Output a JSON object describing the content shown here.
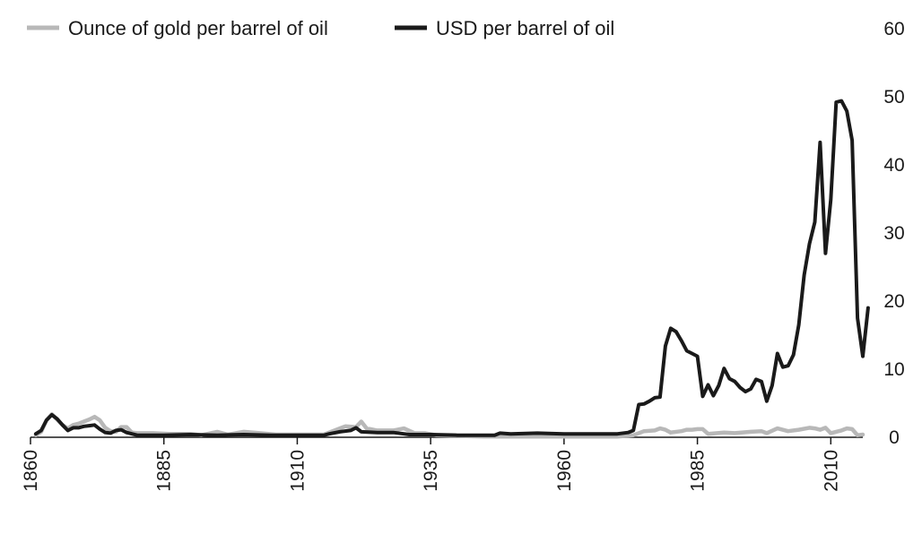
{
  "chart_data": {
    "type": "line",
    "title": "",
    "xlabel": "",
    "ylabel": "",
    "xlim": [
      1860,
      2016
    ],
    "ylim": [
      0,
      60
    ],
    "x_ticks": [
      1860,
      1885,
      1910,
      1935,
      1960,
      1985,
      2010
    ],
    "y_ticks": [
      0,
      10,
      20,
      30,
      40,
      50,
      60
    ],
    "y_axis_position": "right",
    "x_tick_rotation": "vertical",
    "grid": false,
    "legend_position": "top-left",
    "series": [
      {
        "name": "Ounce of gold per barrel of oil",
        "color": "#b8b8b8",
        "points": [
          [
            1861,
            0.3
          ],
          [
            1862,
            0.8
          ],
          [
            1863,
            2.5
          ],
          [
            1864,
            3.4
          ],
          [
            1865,
            2.6
          ],
          [
            1866,
            1.8
          ],
          [
            1867,
            1.3
          ],
          [
            1868,
            1.8
          ],
          [
            1869,
            2.0
          ],
          [
            1870,
            2.3
          ],
          [
            1871,
            2.6
          ],
          [
            1872,
            3.0
          ],
          [
            1873,
            2.5
          ],
          [
            1874,
            1.4
          ],
          [
            1875,
            0.9
          ],
          [
            1876,
            0.8
          ],
          [
            1877,
            1.5
          ],
          [
            1878,
            1.5
          ],
          [
            1879,
            0.7
          ],
          [
            1880,
            0.6
          ],
          [
            1883,
            0.6
          ],
          [
            1886,
            0.5
          ],
          [
            1890,
            0.5
          ],
          [
            1892,
            0.3
          ],
          [
            1895,
            0.8
          ],
          [
            1897,
            0.4
          ],
          [
            1900,
            0.8
          ],
          [
            1903,
            0.6
          ],
          [
            1906,
            0.4
          ],
          [
            1910,
            0.4
          ],
          [
            1915,
            0.4
          ],
          [
            1917,
            1.0
          ],
          [
            1919,
            1.6
          ],
          [
            1921,
            1.5
          ],
          [
            1922,
            2.3
          ],
          [
            1923,
            1.3
          ],
          [
            1925,
            1.0
          ],
          [
            1928,
            1.0
          ],
          [
            1930,
            1.3
          ],
          [
            1932,
            0.6
          ],
          [
            1934,
            0.6
          ],
          [
            1936,
            0.3
          ],
          [
            1940,
            0.2
          ],
          [
            1945,
            0.1
          ],
          [
            1950,
            0.1
          ],
          [
            1955,
            0.1
          ],
          [
            1960,
            0.1
          ],
          [
            1965,
            0.1
          ],
          [
            1970,
            0.1
          ],
          [
            1973,
            0.3
          ],
          [
            1975,
            0.9
          ],
          [
            1977,
            1.0
          ],
          [
            1978,
            1.3
          ],
          [
            1979,
            1.1
          ],
          [
            1980,
            0.7
          ],
          [
            1982,
            0.9
          ],
          [
            1983,
            1.1
          ],
          [
            1984,
            1.1
          ],
          [
            1985,
            1.2
          ],
          [
            1986,
            1.2
          ],
          [
            1987,
            0.5
          ],
          [
            1990,
            0.7
          ],
          [
            1992,
            0.6
          ],
          [
            1995,
            0.8
          ],
          [
            1997,
            0.9
          ],
          [
            1998,
            0.6
          ],
          [
            2000,
            1.3
          ],
          [
            2002,
            0.9
          ],
          [
            2004,
            1.1
          ],
          [
            2006,
            1.4
          ],
          [
            2007,
            1.3
          ],
          [
            2008,
            1.1
          ],
          [
            2009,
            1.4
          ],
          [
            2010,
            0.6
          ],
          [
            2012,
            1.0
          ],
          [
            2013,
            1.3
          ],
          [
            2014,
            1.2
          ],
          [
            2015,
            0.3
          ],
          [
            2016,
            0.4
          ]
        ]
      },
      {
        "name": "USD per barrel of oil",
        "color": "#1a1a1a",
        "points": [
          [
            1861,
            0.5
          ],
          [
            1862,
            1.0
          ],
          [
            1863,
            2.5
          ],
          [
            1864,
            3.3
          ],
          [
            1865,
            2.7
          ],
          [
            1866,
            1.8
          ],
          [
            1867,
            1.0
          ],
          [
            1868,
            1.4
          ],
          [
            1869,
            1.4
          ],
          [
            1870,
            1.6
          ],
          [
            1871,
            1.7
          ],
          [
            1872,
            1.8
          ],
          [
            1873,
            1.2
          ],
          [
            1874,
            0.7
          ],
          [
            1875,
            0.6
          ],
          [
            1876,
            1.0
          ],
          [
            1877,
            1.1
          ],
          [
            1878,
            0.7
          ],
          [
            1879,
            0.5
          ],
          [
            1880,
            0.3
          ],
          [
            1885,
            0.3
          ],
          [
            1890,
            0.4
          ],
          [
            1895,
            0.3
          ],
          [
            1900,
            0.4
          ],
          [
            1905,
            0.3
          ],
          [
            1910,
            0.3
          ],
          [
            1915,
            0.3
          ],
          [
            1916,
            0.5
          ],
          [
            1918,
            0.8
          ],
          [
            1920,
            1.0
          ],
          [
            1921,
            1.4
          ],
          [
            1922,
            0.8
          ],
          [
            1925,
            0.7
          ],
          [
            1928,
            0.7
          ],
          [
            1930,
            0.5
          ],
          [
            1931,
            0.4
          ],
          [
            1935,
            0.4
          ],
          [
            1940,
            0.3
          ],
          [
            1945,
            0.3
          ],
          [
            1947,
            0.3
          ],
          [
            1948,
            0.6
          ],
          [
            1950,
            0.5
          ],
          [
            1955,
            0.6
          ],
          [
            1960,
            0.5
          ],
          [
            1965,
            0.5
          ],
          [
            1970,
            0.5
          ],
          [
            1972,
            0.7
          ],
          [
            1973,
            1.0
          ],
          [
            1974,
            4.8
          ],
          [
            1975,
            4.9
          ],
          [
            1976,
            5.3
          ],
          [
            1977,
            5.8
          ],
          [
            1978,
            5.9
          ],
          [
            1979,
            13.4
          ],
          [
            1980,
            16.0
          ],
          [
            1981,
            15.5
          ],
          [
            1982,
            14.2
          ],
          [
            1983,
            12.7
          ],
          [
            1984,
            12.3
          ],
          [
            1985,
            11.9
          ],
          [
            1986,
            6.0
          ],
          [
            1987,
            7.7
          ],
          [
            1988,
            6.1
          ],
          [
            1989,
            7.6
          ],
          [
            1990,
            10.1
          ],
          [
            1991,
            8.6
          ],
          [
            1992,
            8.2
          ],
          [
            1993,
            7.3
          ],
          [
            1994,
            6.7
          ],
          [
            1995,
            7.1
          ],
          [
            1996,
            8.5
          ],
          [
            1997,
            8.2
          ],
          [
            1998,
            5.3
          ],
          [
            1999,
            7.6
          ],
          [
            2000,
            12.3
          ],
          [
            2001,
            10.3
          ],
          [
            2002,
            10.5
          ],
          [
            2003,
            12.1
          ],
          [
            2004,
            16.5
          ],
          [
            2005,
            23.8
          ],
          [
            2006,
            28.4
          ],
          [
            2007,
            31.6
          ],
          [
            2008,
            43.3
          ],
          [
            2009,
            27.0
          ],
          [
            2010,
            34.9
          ],
          [
            2011,
            49.2
          ],
          [
            2012,
            49.4
          ],
          [
            2013,
            47.9
          ],
          [
            2014,
            43.6
          ],
          [
            2015,
            17.5
          ],
          [
            2016,
            11.9
          ],
          [
            2017,
            19.0
          ]
        ]
      }
    ]
  }
}
